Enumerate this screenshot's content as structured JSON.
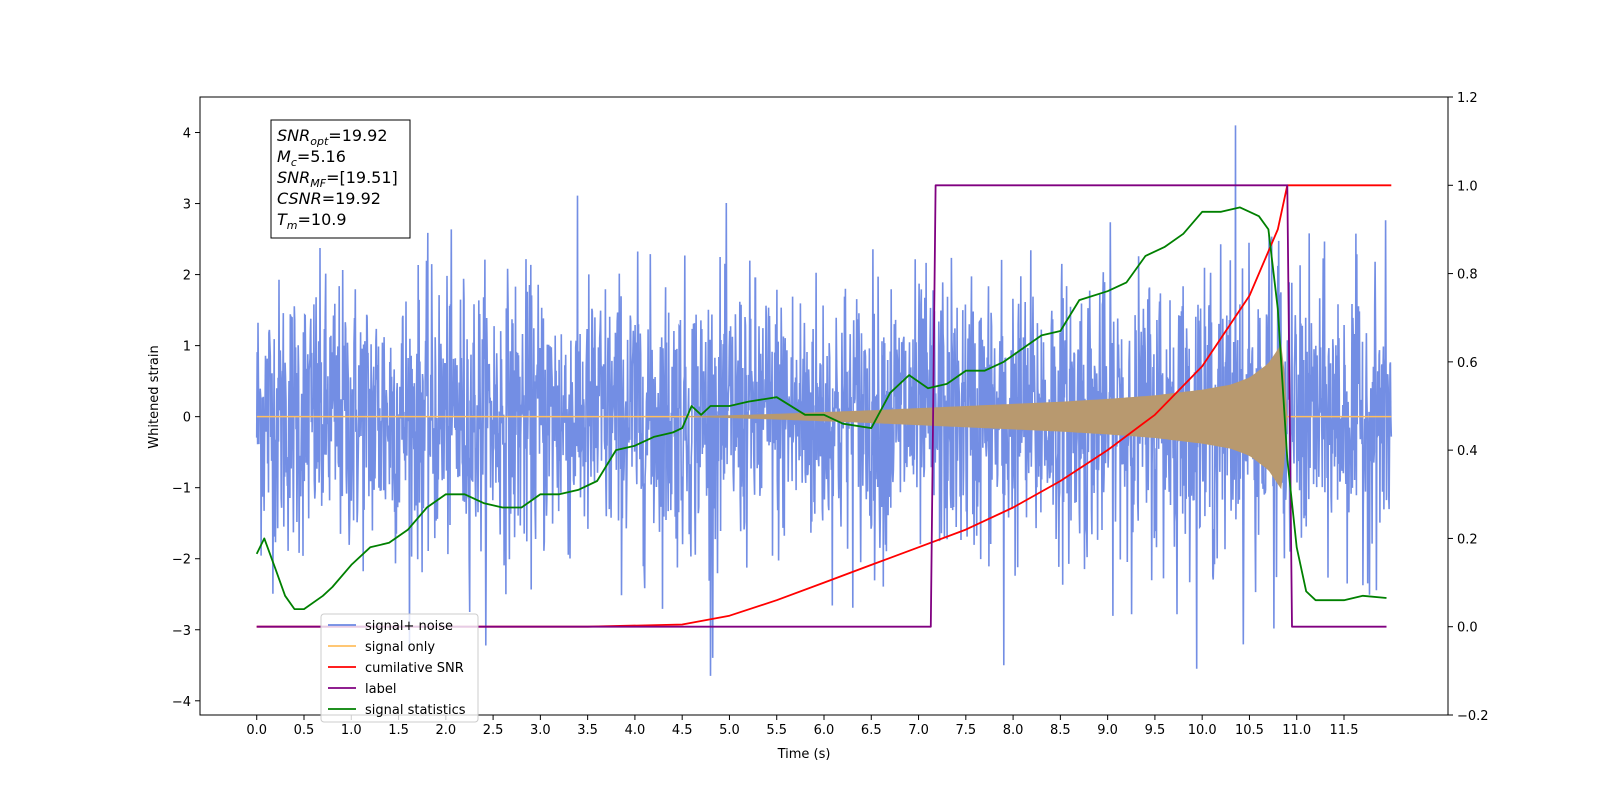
{
  "chart_data": {
    "type": "line",
    "xlabel": "Time (s)",
    "ylabel_left": "Whitened strain",
    "ylabel_right": "",
    "xlim": [
      -0.6,
      12.6
    ],
    "ylim_left": [
      -4.2,
      4.5
    ],
    "ylim_right": [
      -0.2,
      1.2
    ],
    "x_ticks": [
      0.0,
      0.5,
      1.0,
      1.5,
      2.0,
      2.5,
      3.0,
      3.5,
      4.0,
      4.5,
      5.0,
      5.5,
      6.0,
      6.5,
      7.0,
      7.5,
      8.0,
      8.5,
      9.0,
      9.5,
      10.0,
      10.5,
      11.0,
      11.5
    ],
    "x_tick_labels": [
      "0.0",
      "0.5",
      "1.0",
      "1.5",
      "2.0",
      "2.5",
      "3.0",
      "3.5",
      "4.0",
      "4.5",
      "5.0",
      "5.5",
      "6.0",
      "6.5",
      "7.0",
      "7.5",
      "8.0",
      "8.5",
      "9.0",
      "9.5",
      "10.0",
      "10.5",
      "11.0",
      "11.5"
    ],
    "y_ticks_left": [
      -4,
      -3,
      -2,
      -1,
      0,
      1,
      2,
      3,
      4
    ],
    "y_tick_labels_left": [
      "−4",
      "−3",
      "−2",
      "−1",
      "0",
      "1",
      "2",
      "3",
      "4"
    ],
    "y_ticks_right": [
      -0.2,
      0.0,
      0.2,
      0.4,
      0.6,
      0.8,
      1.0,
      1.2
    ],
    "y_tick_labels_right": [
      "−0.2",
      "0.0",
      "0.2",
      "0.4",
      "0.6",
      "0.8",
      "1.0",
      "1.2"
    ],
    "grid": false,
    "legend_position": "bottom-left",
    "series": [
      {
        "name": "signal+ noise",
        "axis": "left",
        "color": "#6b88e3",
        "kind": "noise",
        "x_range": [
          0.0,
          12.0
        ],
        "sigma": 0.95,
        "approx_extremes": [
          {
            "x": 10.35,
            "y": 4.1
          },
          {
            "x": 4.8,
            "y": -3.65
          },
          {
            "x": 7.9,
            "y": -3.5
          }
        ]
      },
      {
        "name": "signal only",
        "axis": "left",
        "color": "#ffbf60",
        "fill_color": "#b8996f",
        "kind": "chirp_envelope",
        "x": [
          4.5,
          5.5,
          6.5,
          7.5,
          8.0,
          8.5,
          9.0,
          9.5,
          10.0,
          10.3,
          10.5,
          10.7,
          10.85,
          10.9
        ],
        "amplitude": [
          0.0,
          0.04,
          0.09,
          0.15,
          0.18,
          0.21,
          0.25,
          0.3,
          0.38,
          0.45,
          0.55,
          0.75,
          1.05,
          0.0
        ]
      },
      {
        "name": "cumilative SNR",
        "axis": "right",
        "color": "#ff0000",
        "x": [
          0.0,
          3.5,
          4.5,
          5.0,
          5.5,
          6.0,
          6.5,
          7.0,
          7.5,
          8.0,
          8.5,
          9.0,
          9.5,
          10.0,
          10.5,
          10.8,
          10.9,
          11.0,
          12.0
        ],
        "y": [
          0.0,
          0.0,
          0.005,
          0.025,
          0.06,
          0.1,
          0.14,
          0.18,
          0.22,
          0.27,
          0.33,
          0.4,
          0.48,
          0.59,
          0.75,
          0.9,
          1.0,
          1.0,
          1.0
        ]
      },
      {
        "name": "label",
        "axis": "right",
        "color": "#800080",
        "x": [
          0.0,
          7.13,
          7.18,
          10.9,
          10.95,
          11.95
        ],
        "y": [
          0.0,
          0.0,
          1.0,
          1.0,
          0.0,
          0.0
        ]
      },
      {
        "name": "signal statistics",
        "axis": "right",
        "color": "#008000",
        "x": [
          0.0,
          0.08,
          0.2,
          0.3,
          0.4,
          0.5,
          0.7,
          0.8,
          1.0,
          1.2,
          1.4,
          1.6,
          1.8,
          2.0,
          2.2,
          2.4,
          2.6,
          2.8,
          3.0,
          3.2,
          3.4,
          3.6,
          3.8,
          4.0,
          4.2,
          4.4,
          4.5,
          4.6,
          4.7,
          4.8,
          5.0,
          5.2,
          5.5,
          5.8,
          6.0,
          6.2,
          6.5,
          6.7,
          6.9,
          7.1,
          7.3,
          7.5,
          7.7,
          7.9,
          8.1,
          8.3,
          8.5,
          8.7,
          9.0,
          9.2,
          9.4,
          9.6,
          9.8,
          10.0,
          10.2,
          10.4,
          10.5,
          10.6,
          10.7,
          10.8,
          10.9,
          11.0,
          11.1,
          11.2,
          11.3,
          11.5,
          11.7,
          11.95
        ],
        "y": [
          0.165,
          0.2,
          0.13,
          0.07,
          0.04,
          0.04,
          0.07,
          0.09,
          0.14,
          0.18,
          0.19,
          0.22,
          0.27,
          0.3,
          0.3,
          0.28,
          0.27,
          0.27,
          0.3,
          0.3,
          0.31,
          0.33,
          0.4,
          0.41,
          0.43,
          0.44,
          0.45,
          0.5,
          0.48,
          0.5,
          0.5,
          0.51,
          0.52,
          0.48,
          0.48,
          0.46,
          0.45,
          0.53,
          0.57,
          0.54,
          0.55,
          0.58,
          0.58,
          0.6,
          0.63,
          0.66,
          0.67,
          0.74,
          0.76,
          0.78,
          0.84,
          0.86,
          0.89,
          0.94,
          0.94,
          0.95,
          0.94,
          0.93,
          0.9,
          0.72,
          0.38,
          0.18,
          0.08,
          0.06,
          0.06,
          0.06,
          0.07,
          0.065
        ]
      }
    ],
    "info_box": {
      "lines": [
        {
          "base": "SNR",
          "sub": "opt",
          "rest": "=19.92"
        },
        {
          "base": "M",
          "sub": "c",
          "rest": "=5.16"
        },
        {
          "base": "SNR",
          "sub": "MF",
          "rest": "=[19.51]"
        },
        {
          "base": "CSNR",
          "sub": "",
          "rest": "=19.92"
        },
        {
          "base": "T",
          "sub": "m",
          "rest": "=10.9"
        }
      ]
    },
    "legend": [
      {
        "label": "signal+ noise",
        "color": "#6b88e3"
      },
      {
        "label": "signal only",
        "color": "#ffbf60"
      },
      {
        "label": "cumilative SNR",
        "color": "#ff0000"
      },
      {
        "label": "label",
        "color": "#800080"
      },
      {
        "label": "signal statistics",
        "color": "#008000"
      }
    ]
  }
}
